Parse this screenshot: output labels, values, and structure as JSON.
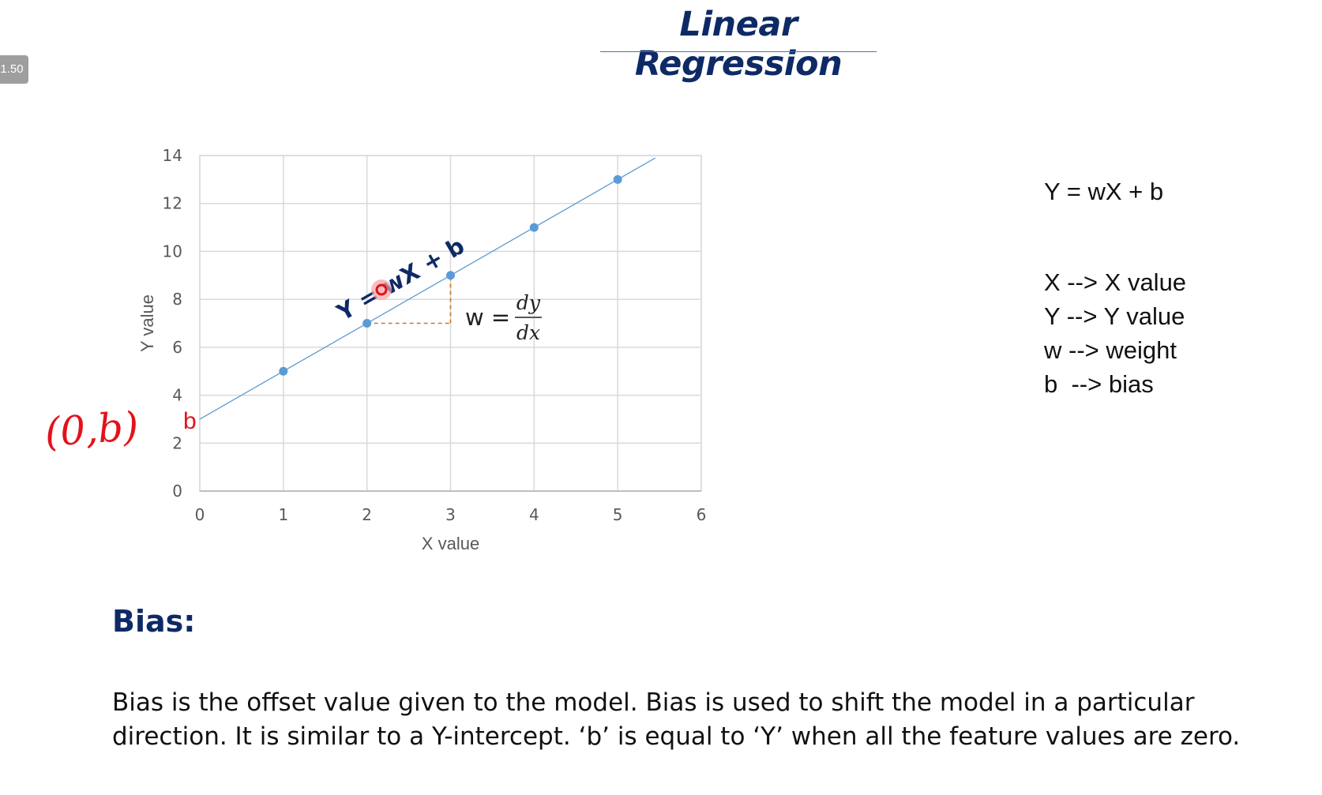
{
  "player": {
    "speed_label": "1.50"
  },
  "slide": {
    "title": "Linear Regression",
    "equation": "Y = wX + b",
    "definitions": [
      "X --> X value",
      "Y --> Y value",
      "w --> weight",
      "b  --> bias"
    ],
    "section_heading": "Bias:",
    "body_lines": [
      "Bias is the offset value given to the model. Bias is used to shift the model in a particular",
      "direction. It is similar to a Y-intercept. ‘b’ is equal to ‘Y’ when all the feature values are zero."
    ],
    "colors": {
      "title": "#0e2a66",
      "heading": "#0e2a66",
      "annotation_red": "#e3121a"
    }
  },
  "chart_data": {
    "type": "scatter",
    "xlabel": "X value",
    "ylabel": "Y value",
    "xlim": [
      0,
      6
    ],
    "ylim": [
      0,
      14
    ],
    "xticks": [
      0,
      1,
      2,
      3,
      4,
      5,
      6
    ],
    "yticks": [
      0,
      2,
      4,
      6,
      8,
      10,
      12,
      14
    ],
    "grid": true,
    "points": [
      {
        "x": 1,
        "y": 5
      },
      {
        "x": 2,
        "y": 7
      },
      {
        "x": 3,
        "y": 9
      },
      {
        "x": 4,
        "y": 11
      },
      {
        "x": 5,
        "y": 13
      }
    ],
    "line": {
      "intercept": 3,
      "slope": 2,
      "x_end": 5.45
    },
    "line_label": "Y = wX + b",
    "slope_annotation": {
      "lhs": "w =",
      "numerator": "dy",
      "denominator": "dx"
    },
    "intercept_label": "b",
    "handwritten_note": "(0,b)",
    "colors": {
      "points": "#5b9bd5",
      "line": "#5b9bd5",
      "grid": "#d9d9d9",
      "axis_text": "#595959",
      "triangle": "#c9782b",
      "line_label": "#0e2a66"
    }
  }
}
